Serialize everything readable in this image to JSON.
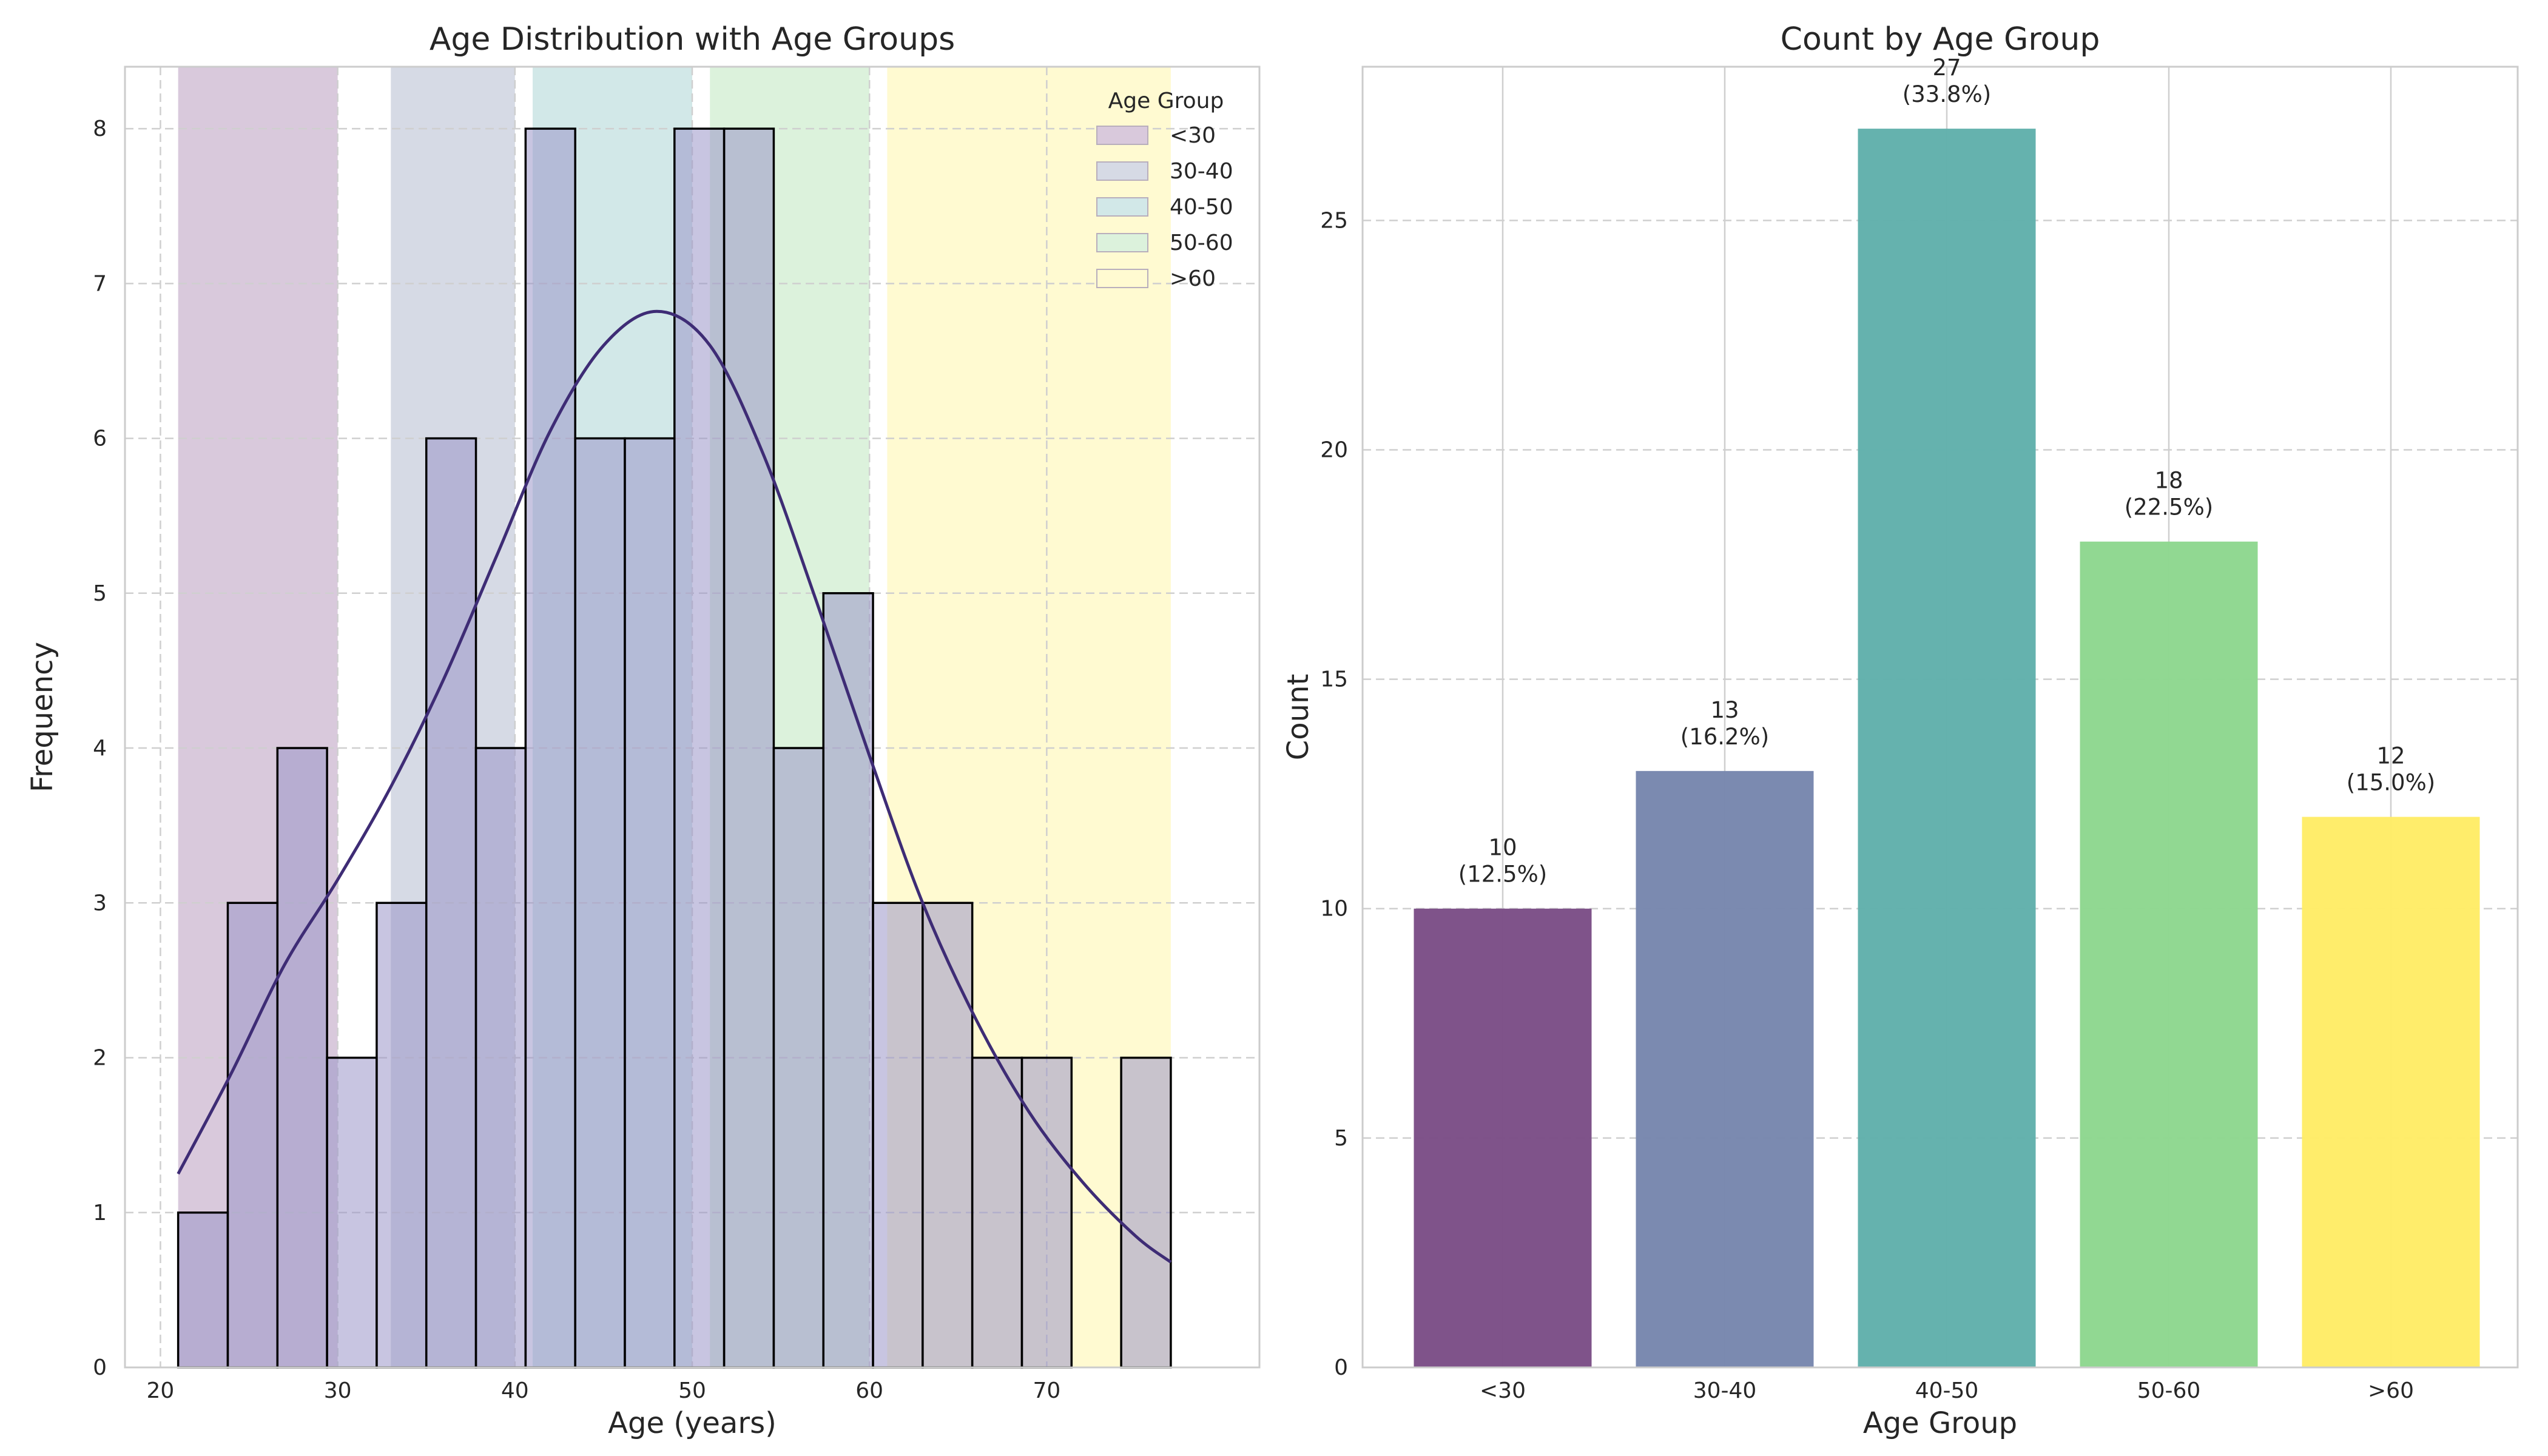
{
  "chart_data": [
    {
      "type": "histogram",
      "title": "Age Distribution with Age Groups",
      "xlabel": "Age (years)",
      "ylabel": "Frequency",
      "xlim": [
        18,
        82
      ],
      "ylim": [
        0,
        8.4
      ],
      "xticks": [
        20,
        30,
        40,
        50,
        60,
        70
      ],
      "yticks": [
        0,
        1,
        2,
        3,
        4,
        5,
        6,
        7,
        8
      ],
      "grid": true,
      "bins": [
        {
          "x0": 21.0,
          "x1": 23.8,
          "count": 1
        },
        {
          "x0": 23.8,
          "x1": 26.6,
          "count": 3
        },
        {
          "x0": 26.6,
          "x1": 29.4,
          "count": 4
        },
        {
          "x0": 29.4,
          "x1": 32.2,
          "count": 2
        },
        {
          "x0": 32.2,
          "x1": 35.0,
          "count": 3
        },
        {
          "x0": 35.0,
          "x1": 37.8,
          "count": 6
        },
        {
          "x0": 37.8,
          "x1": 40.6,
          "count": 4
        },
        {
          "x0": 40.6,
          "x1": 43.4,
          "count": 8
        },
        {
          "x0": 43.4,
          "x1": 46.2,
          "count": 6
        },
        {
          "x0": 46.2,
          "x1": 49.0,
          "count": 6
        },
        {
          "x0": 49.0,
          "x1": 51.8,
          "count": 8
        },
        {
          "x0": 51.8,
          "x1": 54.6,
          "count": 8
        },
        {
          "x0": 54.6,
          "x1": 57.4,
          "count": 4
        },
        {
          "x0": 57.4,
          "x1": 60.2,
          "count": 5
        },
        {
          "x0": 60.2,
          "x1": 63.0,
          "count": 3
        },
        {
          "x0": 63.0,
          "x1": 65.8,
          "count": 3
        },
        {
          "x0": 65.8,
          "x1": 68.6,
          "count": 2
        },
        {
          "x0": 68.6,
          "x1": 71.4,
          "count": 2
        },
        {
          "x0": 71.4,
          "x1": 74.2,
          "count": 0
        },
        {
          "x0": 74.2,
          "x1": 77.0,
          "count": 2
        }
      ],
      "kde": {
        "x": [
          21,
          24,
          27,
          30,
          33,
          36,
          39,
          42,
          45,
          48,
          51,
          54,
          57,
          60,
          63,
          66,
          69,
          72,
          75,
          77
        ],
        "y": [
          1.25,
          1.9,
          2.6,
          3.15,
          3.75,
          4.45,
          5.25,
          6.05,
          6.6,
          6.82,
          6.6,
          5.9,
          4.95,
          3.95,
          3.0,
          2.25,
          1.65,
          1.2,
          0.85,
          0.68
        ]
      },
      "kde_color": "#3e2c75",
      "bar_color": "#9b96c8",
      "bands": [
        {
          "label": "<30",
          "x0": 21,
          "x1": 30,
          "color": "#d9c9dc"
        },
        {
          "label": "30-40",
          "x0": 33,
          "x1": 40,
          "color": "#d6dae5"
        },
        {
          "label": "40-50",
          "x0": 41,
          "x1": 50,
          "color": "#d2e8e8"
        },
        {
          "label": "50-60",
          "x0": 51,
          "x1": 60,
          "color": "#dcf2dc"
        },
        {
          "label": ">60",
          "x0": 61,
          "x1": 77,
          "color": "#fffad1"
        }
      ],
      "legend": {
        "title": "Age Group",
        "location": "upper right"
      }
    },
    {
      "type": "bar",
      "title": "Count by Age Group",
      "xlabel": "Age Group",
      "ylabel": "Count",
      "categories": [
        "<30",
        "30-40",
        "40-50",
        "50-60",
        ">60"
      ],
      "values": [
        10,
        13,
        27,
        18,
        12
      ],
      "labels": [
        [
          "10",
          "(12.5%)"
        ],
        [
          "13",
          "(16.2%)"
        ],
        [
          "27",
          "(33.8%)"
        ],
        [
          "18",
          "(22.5%)"
        ],
        [
          "12",
          "(15.0%)"
        ]
      ],
      "colors": [
        "#7b4d86",
        "#7786ad",
        "#60b0ab",
        "#8dd78e",
        "#ffec66"
      ],
      "ylim": [
        0,
        28.35
      ],
      "yticks": [
        0,
        5,
        10,
        15,
        20,
        25
      ],
      "grid": true
    }
  ]
}
